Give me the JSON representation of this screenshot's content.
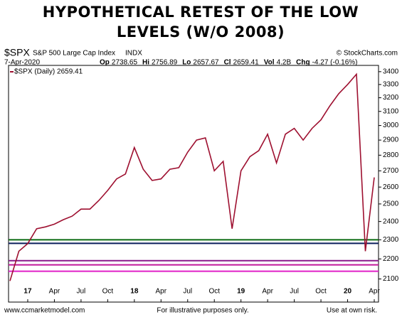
{
  "chart_data": {
    "type": "line",
    "title": [
      "HYPOTHETICAL RETEST OF THE LOW",
      "LEVELS (W/O 2008)"
    ],
    "header": {
      "symbol": "$SPX",
      "name": "S&P 500 Large Cap Index",
      "exchange": "INDX",
      "source": "© StockCharts.com",
      "date": "7-Apr-2020",
      "quotes": [
        {
          "label": "Op",
          "value": 2738.65
        },
        {
          "label": "Hi",
          "value": 2756.89
        },
        {
          "label": "Lo",
          "value": 2657.67
        },
        {
          "label": "Cl",
          "value": 2659.41
        },
        {
          "label": "Vol",
          "value": "4.2B"
        },
        {
          "label": "Chg",
          "value": "-4.27 (-0.16%)"
        }
      ]
    },
    "categories": [
      null,
      null,
      "17",
      null,
      null,
      "Apr",
      null,
      null,
      "Jul",
      null,
      null,
      "Oct",
      null,
      null,
      "18",
      null,
      null,
      "Apr",
      null,
      null,
      "Jul",
      null,
      null,
      "Oct",
      null,
      null,
      "19",
      null,
      null,
      "Apr",
      null,
      null,
      "Jul",
      null,
      null,
      "Oct",
      null,
      null,
      "20",
      null,
      null,
      "Apr"
    ],
    "series": [
      {
        "name": "$SPX (Daily) 2659.41",
        "color": "#9e1030",
        "values": [
          2090,
          2240,
          2280,
          2360,
          2370,
          2385,
          2410,
          2430,
          2470,
          2470,
          2520,
          2580,
          2650,
          2680,
          2850,
          2710,
          2640,
          2650,
          2710,
          2720,
          2820,
          2900,
          2915,
          2700,
          2760,
          2360,
          2700,
          2790,
          2830,
          2940,
          2750,
          2940,
          2980,
          2900,
          2980,
          3040,
          3140,
          3230,
          3300,
          3380,
          2240,
          2659
        ]
      }
    ],
    "hlines": [
      {
        "value": 2300,
        "color": "#0a6b12"
      },
      {
        "value": 2281,
        "color": "#0b1f5c"
      },
      {
        "value": 2191,
        "color": "#8a1a8a"
      },
      {
        "value": 2170,
        "color": "#c2189a"
      },
      {
        "value": 2138,
        "color": "#e020c8"
      }
    ],
    "ylim": [
      1990,
      3450
    ],
    "yticks": [
      2100,
      2200,
      2300,
      2400,
      2500,
      2600,
      2700,
      2800,
      2900,
      3000,
      3100,
      3200,
      3300,
      3400
    ],
    "log_scale": true,
    "grid": false,
    "footer": [
      "www.ccmarketmodel.com",
      "For illustrative purposes only.",
      "Use at own risk."
    ]
  }
}
